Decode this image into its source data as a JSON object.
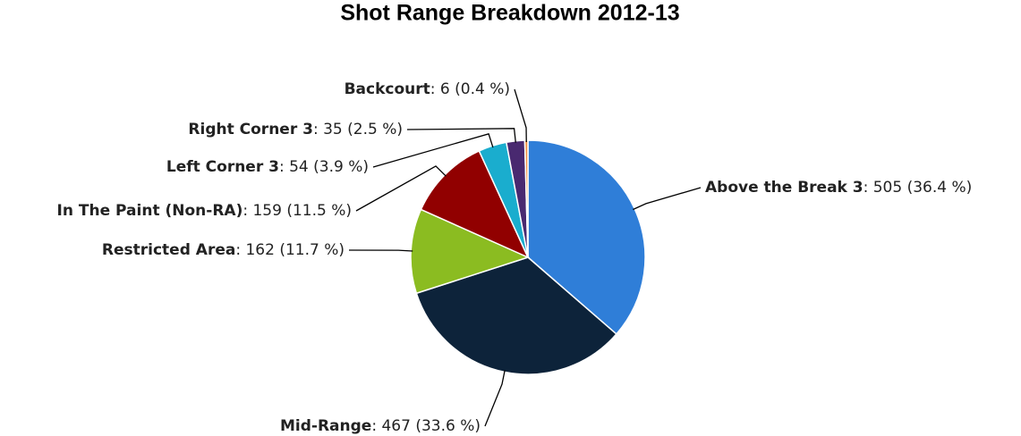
{
  "chart_data": {
    "type": "pie",
    "title": "Shot Range Breakdown 2012-13",
    "categories": [
      "Above the Break 3",
      "Mid-Range",
      "Restricted Area",
      "In The Paint (Non-RA)",
      "Left Corner 3",
      "Right Corner 3",
      "Backcourt"
    ],
    "values": [
      505,
      467,
      162,
      159,
      54,
      35,
      6
    ],
    "value_labels": [
      ": 505 (36.4 %)",
      ": 467 (33.6 %)",
      ": 162 (11.7 %)",
      ": 159 (11.5 %)",
      ": 54 (3.9 %)",
      ": 35 (2.5 %)",
      ": 6 (0.4 %)"
    ],
    "colors": [
      "#2f7ed8",
      "#0d233a",
      "#8bbc21",
      "#910000",
      "#1aadce",
      "#492970",
      "#f28f43"
    ]
  }
}
